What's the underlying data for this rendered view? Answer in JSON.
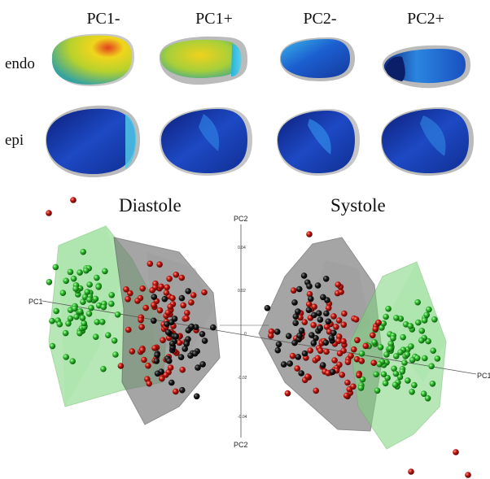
{
  "columns": [
    "PC1-",
    "PC1+",
    "PC2-",
    "PC2+"
  ],
  "rows": [
    "endo",
    "epi"
  ],
  "panels": {
    "left_title": "Diastole",
    "right_title": "Systole"
  },
  "axes": {
    "pc1_left": "PC1",
    "pc1_right": "PC1",
    "pc2_top": "PC2",
    "pc2_bottom": "PC2"
  },
  "ticks": [
    "0.04",
    "0.02",
    "0",
    "-0.02",
    "-0.04"
  ],
  "colors": {
    "group_green": "#2eb82e",
    "group_red": "#c0150f",
    "group_black": "#151515",
    "hull_green": "#7ed47e",
    "hull_gray": "#6b6b6b",
    "shape_blue": "#1030a8",
    "shape_yellow": "#e8d21a"
  }
}
